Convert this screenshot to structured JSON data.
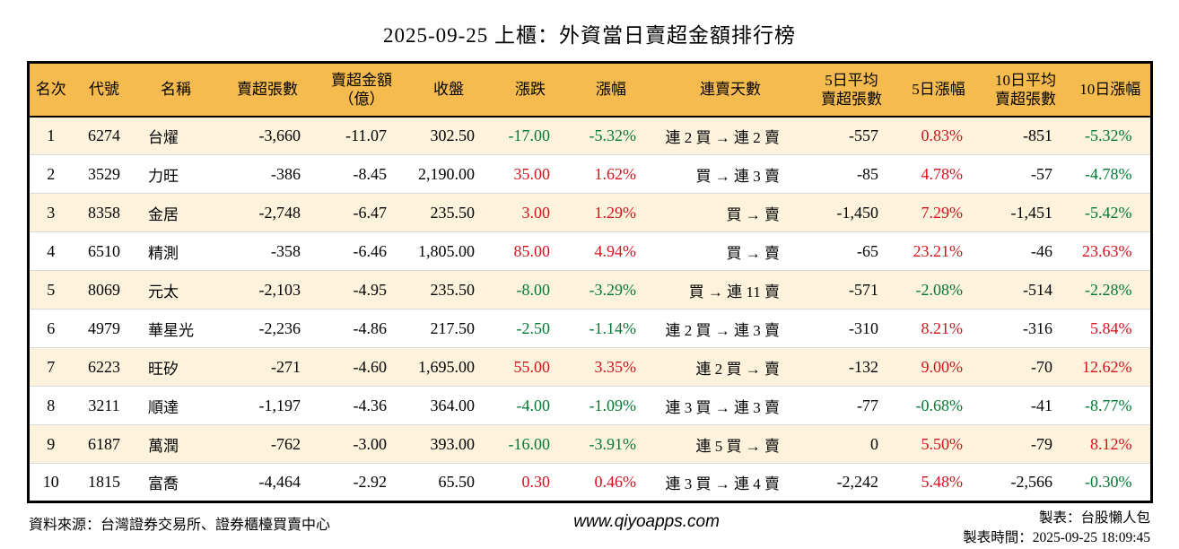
{
  "title": "2025-09-25 上櫃：外資當日賣超金額排行榜",
  "colors": {
    "up": "#d7101c",
    "down": "#007a33",
    "header_bg": "#f6bb4e",
    "row_stripe": "#fdf3dc"
  },
  "table": {
    "headers": [
      "名次",
      "代號",
      "名稱",
      "賣超張數",
      "賣超金額\n（億）",
      "收盤",
      "漲跌",
      "漲幅",
      "連賣天數",
      "5日平均\n賣超張數",
      "5日漲幅",
      "10日平均\n賣超張數",
      "10日漲幅"
    ],
    "rows": [
      {
        "rank": "1",
        "code": "6274",
        "name": "台燿",
        "sell_shares": "-3,660",
        "sell_amount": "-11.07",
        "close": "302.50",
        "change": "-17.00",
        "change_pct": "-5.32%",
        "streak": "連 2 買 → 連 2 賣",
        "avg5": "-557",
        "pct5": "0.83%",
        "avg10": "-851",
        "pct10": "-5.32%"
      },
      {
        "rank": "2",
        "code": "3529",
        "name": "力旺",
        "sell_shares": "-386",
        "sell_amount": "-8.45",
        "close": "2,190.00",
        "change": "35.00",
        "change_pct": "1.62%",
        "streak": "買 → 連 3 賣",
        "avg5": "-85",
        "pct5": "4.78%",
        "avg10": "-57",
        "pct10": "-4.78%"
      },
      {
        "rank": "3",
        "code": "8358",
        "name": "金居",
        "sell_shares": "-2,748",
        "sell_amount": "-6.47",
        "close": "235.50",
        "change": "3.00",
        "change_pct": "1.29%",
        "streak": "買 → 賣",
        "avg5": "-1,450",
        "pct5": "7.29%",
        "avg10": "-1,451",
        "pct10": "-5.42%"
      },
      {
        "rank": "4",
        "code": "6510",
        "name": "精測",
        "sell_shares": "-358",
        "sell_amount": "-6.46",
        "close": "1,805.00",
        "change": "85.00",
        "change_pct": "4.94%",
        "streak": "買 → 賣",
        "avg5": "-65",
        "pct5": "23.21%",
        "avg10": "-46",
        "pct10": "23.63%"
      },
      {
        "rank": "5",
        "code": "8069",
        "name": "元太",
        "sell_shares": "-2,103",
        "sell_amount": "-4.95",
        "close": "235.50",
        "change": "-8.00",
        "change_pct": "-3.29%",
        "streak": "買 → 連 11 賣",
        "avg5": "-571",
        "pct5": "-2.08%",
        "avg10": "-514",
        "pct10": "-2.28%"
      },
      {
        "rank": "6",
        "code": "4979",
        "name": "華星光",
        "sell_shares": "-2,236",
        "sell_amount": "-4.86",
        "close": "217.50",
        "change": "-2.50",
        "change_pct": "-1.14%",
        "streak": "連 2 買 → 連 3 賣",
        "avg5": "-310",
        "pct5": "8.21%",
        "avg10": "-316",
        "pct10": "5.84%"
      },
      {
        "rank": "7",
        "code": "6223",
        "name": "旺矽",
        "sell_shares": "-271",
        "sell_amount": "-4.60",
        "close": "1,695.00",
        "change": "55.00",
        "change_pct": "3.35%",
        "streak": "連 2 買 → 賣",
        "avg5": "-132",
        "pct5": "9.00%",
        "avg10": "-70",
        "pct10": "12.62%"
      },
      {
        "rank": "8",
        "code": "3211",
        "name": "順達",
        "sell_shares": "-1,197",
        "sell_amount": "-4.36",
        "close": "364.00",
        "change": "-4.00",
        "change_pct": "-1.09%",
        "streak": "連 3 買 → 連 3 賣",
        "avg5": "-77",
        "pct5": "-0.68%",
        "avg10": "-41",
        "pct10": "-8.77%"
      },
      {
        "rank": "9",
        "code": "6187",
        "name": "萬潤",
        "sell_shares": "-762",
        "sell_amount": "-3.00",
        "close": "393.00",
        "change": "-16.00",
        "change_pct": "-3.91%",
        "streak": "連 5 買 → 賣",
        "avg5": "0",
        "pct5": "5.50%",
        "avg10": "-79",
        "pct10": "8.12%"
      },
      {
        "rank": "10",
        "code": "1815",
        "name": "富喬",
        "sell_shares": "-4,464",
        "sell_amount": "-2.92",
        "close": "65.50",
        "change": "0.30",
        "change_pct": "0.46%",
        "streak": "連 3 買 → 連 4 賣",
        "avg5": "-2,242",
        "pct5": "5.48%",
        "avg10": "-2,566",
        "pct10": "-0.30%"
      }
    ]
  },
  "footer": {
    "source": "資料來源：台灣證券交易所、證券櫃檯買賣中心",
    "website": "www.qiyoapps.com",
    "author": "製表：台股懶人包",
    "timestamp": "製表時間：2025-09-25 18:09:45"
  }
}
